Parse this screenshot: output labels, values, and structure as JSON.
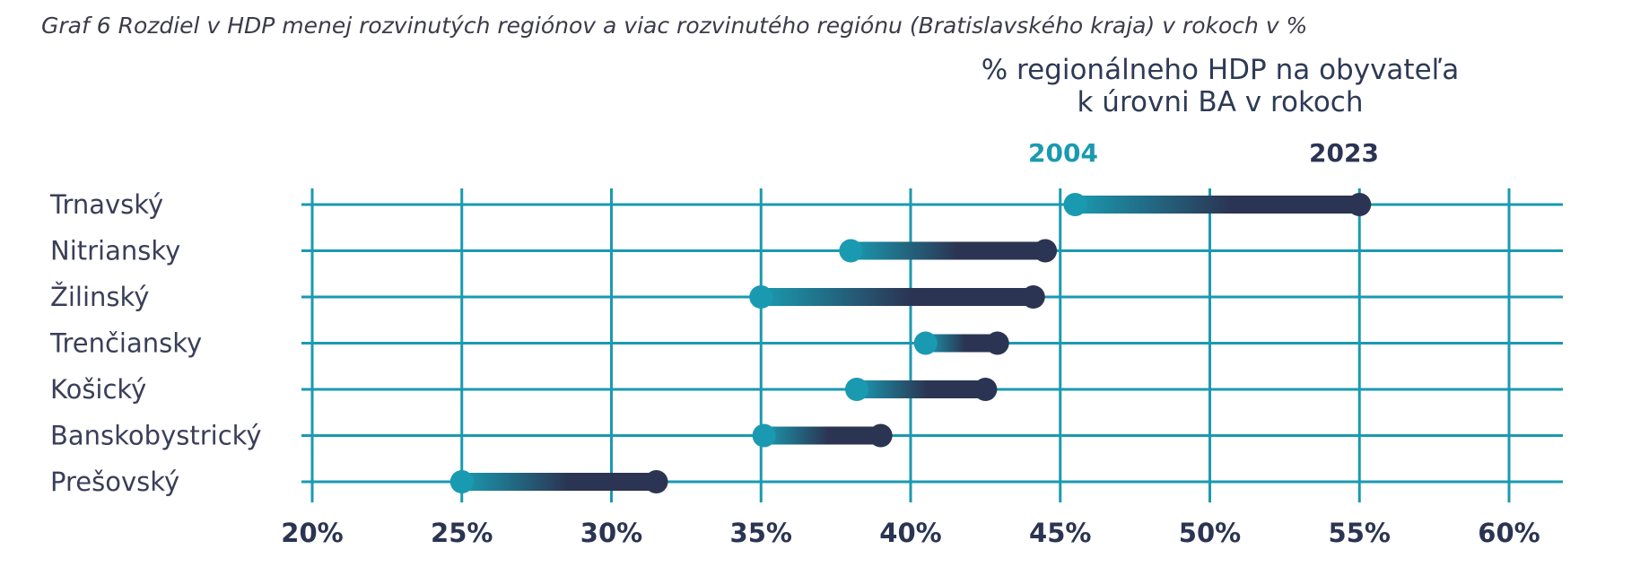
{
  "caption": "Graf 6 Rozdiel v HDP menej rozvinutých regiónov a viac rozvinutého regiónu (Bratislavského kraja) v rokoch v %",
  "chart_data": {
    "type": "dumbbell",
    "title": "% regionálneho HDP na obyvateľa k úrovni BA v rokoch",
    "title_lines": [
      "% regionálneho HDP na obyvateľa",
      "k úrovni BA v rokoch"
    ],
    "categories": [
      "Trnavský",
      "Nitriansky",
      "Žilinský",
      "Trenčiansky",
      "Košický",
      "Banskobystrický",
      "Prešovský"
    ],
    "series": [
      {
        "name": "2004",
        "values": [
          45.5,
          38,
          35,
          40.5,
          38.2,
          35.1,
          25
        ]
      },
      {
        "name": "2023",
        "values": [
          55,
          44.5,
          44.1,
          42.9,
          42.5,
          39,
          31.5
        ]
      }
    ],
    "xlim": [
      20,
      60
    ],
    "xticks": [
      20,
      25,
      30,
      35,
      40,
      45,
      50,
      55,
      60
    ],
    "xtick_labels": [
      "20%",
      "25%",
      "30%",
      "35%",
      "40%",
      "45%",
      "50%",
      "55%",
      "60%"
    ],
    "legend_position": "top-right",
    "grid": true,
    "colors": {
      "start": "#1a9ab0",
      "end": "#2b3452",
      "grid": "#1a9ab0"
    }
  }
}
